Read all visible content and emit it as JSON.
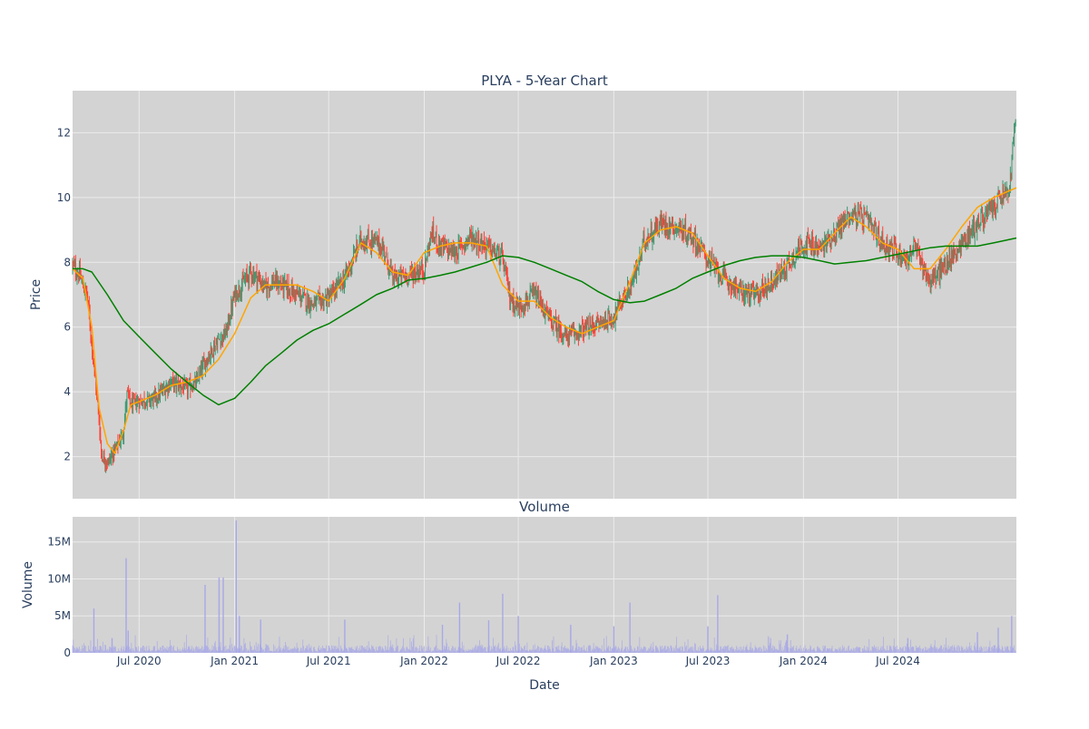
{
  "chart_data": [
    {
      "type": "candlestick",
      "title": "PLYA - 5-Year Chart",
      "ylabel": "Price",
      "ylim": [
        0.7,
        13.3
      ],
      "yticks": [
        2,
        4,
        6,
        8,
        10,
        12
      ],
      "x_range": [
        "2020-02-24",
        "2025-02-14"
      ],
      "grid": true,
      "colors": {
        "up": "#3d9970",
        "down": "#ff4136",
        "ma_short": "#ffa500",
        "ma_long": "#008000",
        "background": "#d3d3d3"
      },
      "close_series": {
        "x": [
          "2020-02-24",
          "2020-03-09",
          "2020-03-16",
          "2020-03-23",
          "2020-04-01",
          "2020-04-13",
          "2020-04-20",
          "2020-05-01",
          "2020-05-15",
          "2020-05-25",
          "2020-06-01",
          "2020-06-08",
          "2020-06-15",
          "2020-07-01",
          "2020-08-01",
          "2020-09-01",
          "2020-10-01",
          "2020-10-20",
          "2020-11-01",
          "2020-11-15",
          "2020-12-01",
          "2020-12-15",
          "2021-01-01",
          "2021-01-15",
          "2021-02-01",
          "2021-02-15",
          "2021-03-01",
          "2021-03-15",
          "2021-04-01",
          "2021-05-01",
          "2021-06-01",
          "2021-07-01",
          "2021-08-01",
          "2021-09-01",
          "2021-10-01",
          "2021-10-15",
          "2021-11-01",
          "2021-12-01",
          "2022-01-01",
          "2022-01-15",
          "2022-02-01",
          "2022-03-01",
          "2022-04-01",
          "2022-05-01",
          "2022-06-01",
          "2022-06-15",
          "2022-07-01",
          "2022-08-01",
          "2022-09-01",
          "2022-10-01",
          "2022-11-01",
          "2022-12-01",
          "2023-01-01",
          "2023-01-15",
          "2023-02-01",
          "2023-02-15",
          "2023-03-01",
          "2023-04-01",
          "2023-05-01",
          "2023-06-01",
          "2023-07-01",
          "2023-08-01",
          "2023-09-01",
          "2023-10-01",
          "2023-11-01",
          "2023-12-01",
          "2024-01-01",
          "2024-02-01",
          "2024-03-01",
          "2024-04-01",
          "2024-05-01",
          "2024-06-01",
          "2024-07-01",
          "2024-07-20",
          "2024-08-01",
          "2024-09-01",
          "2024-10-01",
          "2024-11-01",
          "2024-12-01",
          "2025-01-01",
          "2025-01-15",
          "2025-02-01",
          "2025-02-10"
        ],
        "close": [
          7.9,
          7.6,
          7.2,
          7.0,
          5.5,
          3.5,
          2.0,
          1.8,
          2.2,
          2.5,
          2.8,
          4.0,
          3.6,
          3.7,
          3.8,
          4.3,
          4.1,
          4.3,
          4.8,
          5.2,
          5.6,
          5.8,
          7.0,
          7.3,
          7.7,
          7.5,
          7.2,
          7.4,
          7.3,
          7.0,
          6.7,
          6.9,
          7.5,
          8.7,
          8.6,
          8.4,
          7.5,
          7.6,
          7.8,
          8.9,
          8.5,
          8.3,
          8.8,
          8.5,
          8.1,
          6.9,
          6.6,
          7.0,
          6.2,
          5.7,
          5.9,
          6.1,
          6.3,
          6.8,
          7.2,
          7.8,
          8.7,
          9.2,
          9.1,
          8.8,
          8.1,
          7.5,
          7.1,
          7.0,
          7.4,
          7.9,
          8.6,
          8.4,
          8.9,
          9.5,
          9.3,
          8.6,
          8.3,
          8.1,
          8.5,
          7.4,
          7.9,
          8.6,
          9.2,
          9.7,
          10.0,
          10.2,
          12.2
        ]
      },
      "moving_averages": [
        {
          "x": [
            "2020-02-24",
            "2020-03-15",
            "2020-04-01",
            "2020-04-15",
            "2020-05-01",
            "2020-05-15",
            "2020-06-01",
            "2020-06-15",
            "2020-07-01",
            "2020-08-01",
            "2020-09-01",
            "2020-10-01",
            "2020-11-01",
            "2020-12-01",
            "2021-01-01",
            "2021-02-01",
            "2021-03-01",
            "2021-04-01",
            "2021-05-01",
            "2021-06-01",
            "2021-07-01",
            "2021-08-01",
            "2021-09-01",
            "2021-10-01",
            "2021-11-01",
            "2021-12-01",
            "2022-01-01",
            "2022-02-01",
            "2022-03-01",
            "2022-04-01",
            "2022-05-01",
            "2022-06-01",
            "2022-07-01",
            "2022-08-01",
            "2022-09-01",
            "2022-10-01",
            "2022-11-01",
            "2022-12-01",
            "2023-01-01",
            "2023-02-01",
            "2023-03-01",
            "2023-04-01",
            "2023-05-01",
            "2023-06-01",
            "2023-07-01",
            "2023-08-01",
            "2023-09-01",
            "2023-10-01",
            "2023-11-01",
            "2023-12-01",
            "2024-01-01",
            "2024-02-01",
            "2024-03-01",
            "2024-04-01",
            "2024-05-01",
            "2024-06-01",
            "2024-07-01",
            "2024-08-01",
            "2024-09-01",
            "2024-10-01",
            "2024-11-01",
            "2024-12-01",
            "2025-01-01",
            "2025-02-14"
          ],
          "y": [
            7.8,
            7.5,
            6.0,
            3.5,
            2.4,
            2.1,
            2.8,
            3.6,
            3.7,
            3.9,
            4.2,
            4.3,
            4.5,
            5.0,
            5.8,
            6.9,
            7.3,
            7.3,
            7.3,
            7.1,
            6.8,
            7.5,
            8.6,
            8.3,
            7.7,
            7.6,
            8.3,
            8.5,
            8.6,
            8.6,
            8.5,
            7.3,
            6.8,
            6.8,
            6.3,
            6.0,
            5.8,
            6.0,
            6.2,
            7.4,
            8.6,
            9.0,
            9.1,
            8.9,
            8.2,
            7.5,
            7.2,
            7.1,
            7.4,
            8.0,
            8.4,
            8.4,
            8.9,
            9.4,
            9.1,
            8.6,
            8.4,
            7.8,
            7.8,
            8.4,
            9.1,
            9.7,
            10.0,
            10.3
          ]
        },
        {
          "x": [
            "2020-02-24",
            "2020-03-15",
            "2020-04-01",
            "2020-05-01",
            "2020-06-01",
            "2020-07-01",
            "2020-08-01",
            "2020-09-01",
            "2020-10-01",
            "2020-11-01",
            "2020-12-01",
            "2021-01-01",
            "2021-02-01",
            "2021-03-01",
            "2021-04-01",
            "2021-05-01",
            "2021-06-01",
            "2021-07-01",
            "2021-08-01",
            "2021-09-01",
            "2021-10-01",
            "2021-11-01",
            "2021-12-01",
            "2022-01-01",
            "2022-02-01",
            "2022-03-01",
            "2022-04-01",
            "2022-05-01",
            "2022-06-01",
            "2022-07-01",
            "2022-08-01",
            "2022-09-01",
            "2022-10-01",
            "2022-11-01",
            "2022-12-01",
            "2023-01-01",
            "2023-02-01",
            "2023-03-01",
            "2023-04-01",
            "2023-05-01",
            "2023-06-01",
            "2023-07-01",
            "2023-08-01",
            "2023-09-01",
            "2023-10-01",
            "2023-11-01",
            "2023-12-01",
            "2024-01-01",
            "2024-02-01",
            "2024-03-01",
            "2024-04-01",
            "2024-05-01",
            "2024-06-01",
            "2024-07-01",
            "2024-08-01",
            "2024-09-01",
            "2024-10-01",
            "2024-11-01",
            "2024-12-01",
            "2025-01-01",
            "2025-02-14"
          ],
          "y": [
            7.8,
            7.8,
            7.7,
            7.0,
            6.2,
            5.7,
            5.2,
            4.7,
            4.3,
            3.9,
            3.6,
            3.8,
            4.3,
            4.8,
            5.2,
            5.6,
            5.9,
            6.1,
            6.4,
            6.7,
            7.0,
            7.2,
            7.45,
            7.5,
            7.6,
            7.7,
            7.85,
            8.0,
            8.2,
            8.15,
            8.0,
            7.8,
            7.6,
            7.4,
            7.1,
            6.85,
            6.75,
            6.8,
            7.0,
            7.2,
            7.5,
            7.7,
            7.9,
            8.05,
            8.15,
            8.2,
            8.2,
            8.15,
            8.05,
            7.95,
            8.0,
            8.05,
            8.15,
            8.25,
            8.35,
            8.45,
            8.5,
            8.5,
            8.5,
            8.6,
            8.75
          ]
        }
      ]
    },
    {
      "type": "bar",
      "title": "Volume",
      "xlabel": "Date",
      "ylabel": "Volume",
      "ylim": [
        0,
        18400000
      ],
      "yticks": [
        0,
        5000000,
        10000000,
        15000000
      ],
      "ytick_labels": [
        "0",
        "5M",
        "10M",
        "15M"
      ],
      "xticks": [
        "2020-07-01",
        "2021-01-01",
        "2021-07-01",
        "2022-01-01",
        "2022-07-01",
        "2023-01-01",
        "2023-07-01",
        "2024-01-01",
        "2024-07-01"
      ],
      "xtick_labels": [
        "Jul 2020",
        "Jan 2021",
        "Jul 2021",
        "Jan 2022",
        "Jul 2022",
        "Jan 2023",
        "Jul 2023",
        "Jan 2024",
        "Jul 2024"
      ],
      "x_range": [
        "2020-02-24",
        "2025-02-14"
      ],
      "grid": true,
      "colors": {
        "bar": "#a8a8e8",
        "background": "#d3d3d3"
      },
      "spikes": {
        "x": [
          "2020-04-05",
          "2020-05-10",
          "2020-06-06",
          "2020-06-10",
          "2020-11-05",
          "2020-12-02",
          "2020-12-10",
          "2021-01-04",
          "2021-01-10",
          "2021-02-20",
          "2021-08-01",
          "2022-02-05",
          "2022-03-10",
          "2022-05-05",
          "2022-06-01",
          "2022-07-01",
          "2022-10-10",
          "2023-01-01",
          "2023-02-01",
          "2023-07-01",
          "2023-07-20",
          "2023-12-01",
          "2024-07-20",
          "2024-12-01",
          "2025-01-10",
          "2025-02-05"
        ],
        "y": [
          6000000,
          2000000,
          12800000,
          3000000,
          9200000,
          10200000,
          10200000,
          17900000,
          5000000,
          4500000,
          4500000,
          3800000,
          6800000,
          4400000,
          8000000,
          5000000,
          3800000,
          3600000,
          6800000,
          3600000,
          7800000,
          2500000,
          2000000,
          2800000,
          3400000,
          5000000
        ]
      }
    }
  ]
}
